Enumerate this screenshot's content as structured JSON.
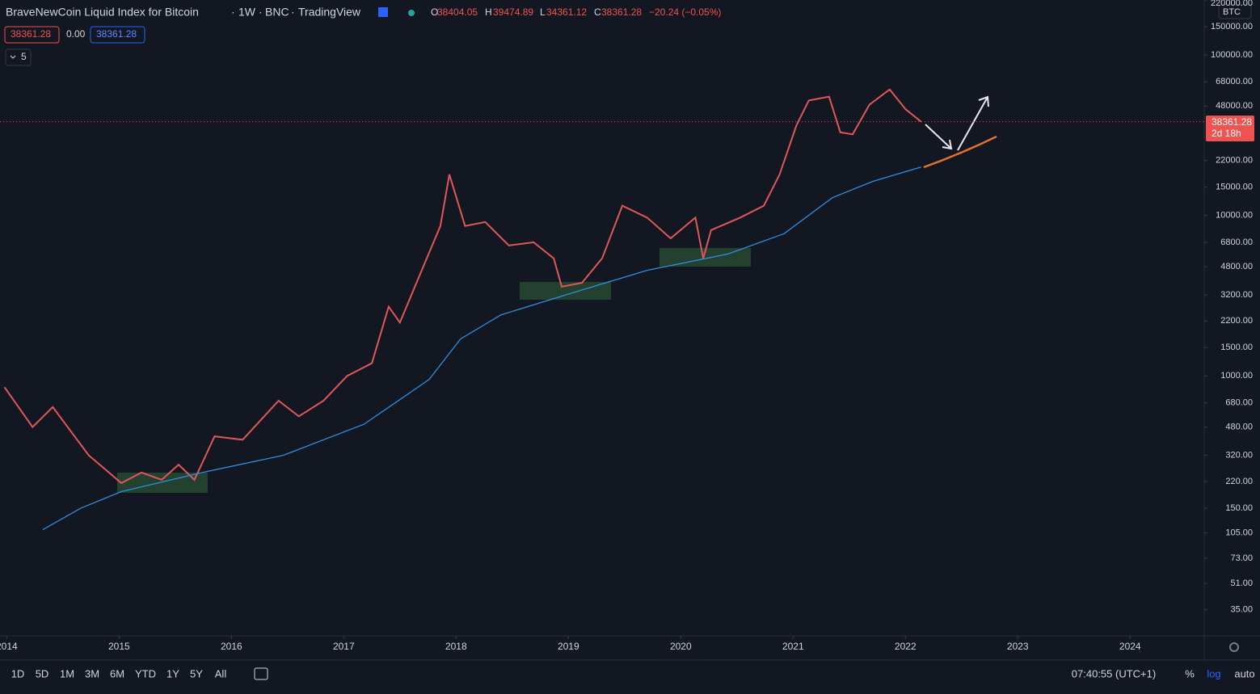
{
  "header": {
    "symbol": "BraveNewCoin Liquid Index for Bitcoin",
    "separator": "·",
    "interval": "1W",
    "exchange": "BNC",
    "source": "TradingView",
    "ohlc": [
      {
        "label": "O",
        "value": "38404.05"
      },
      {
        "label": "H",
        "value": "39474.89"
      },
      {
        "label": "L",
        "value": "34361.12"
      },
      {
        "label": "C",
        "value": "38361.28"
      }
    ],
    "change": "−20.24 (−0.05%)"
  },
  "indicator": {
    "values": [
      "38361.28",
      "0.00",
      "38361.28"
    ],
    "collapsed_count": "5"
  },
  "price_scale": {
    "currency": "BTC",
    "last_price": "38361.28",
    "countdown": "2d 18h"
  },
  "toolbar": {
    "ranges": [
      "1D",
      "5D",
      "1M",
      "3M",
      "6M",
      "YTD",
      "1Y",
      "5Y",
      "All"
    ],
    "time": "07:40:55 (UTC+1)",
    "options": [
      "%",
      "log",
      "auto"
    ]
  },
  "chart_data": {
    "type": "line",
    "log_scale": true,
    "grid": false,
    "xlim": [
      2013.94,
      2024.66
    ],
    "xticks": [
      2014,
      2015,
      2016,
      2017,
      2018,
      2019,
      2020,
      2021,
      2022,
      2023,
      2024
    ],
    "ylim": [
      24,
      220000
    ],
    "yticks": [
      {
        "value": 220000,
        "label": "220000.00"
      },
      {
        "value": 150000,
        "label": "150000.00"
      },
      {
        "value": 100000,
        "label": "100000.00"
      },
      {
        "value": 68000,
        "label": "68000.00"
      },
      {
        "value": 48000,
        "label": "48000.00"
      },
      {
        "value": 22000,
        "label": "22000.00"
      },
      {
        "value": 15000,
        "label": "15000.00"
      },
      {
        "value": 10000,
        "label": "10000.00"
      },
      {
        "value": 6800,
        "label": "6800.00"
      },
      {
        "value": 4800,
        "label": "4800.00"
      },
      {
        "value": 3200,
        "label": "3200.00"
      },
      {
        "value": 2200,
        "label": "2200.00"
      },
      {
        "value": 1500,
        "label": "1500.00"
      },
      {
        "value": 1000,
        "label": "1000.00"
      },
      {
        "value": 680,
        "label": "680.00"
      },
      {
        "value": 480,
        "label": "480.00"
      },
      {
        "value": 320,
        "label": "320.00"
      },
      {
        "value": 220,
        "label": "220.00"
      },
      {
        "value": 150,
        "label": "150.00"
      },
      {
        "value": 105,
        "label": "105.00"
      },
      {
        "value": 73,
        "label": "73.00"
      },
      {
        "value": 51,
        "label": "51.00"
      },
      {
        "value": 35,
        "label": "35.00"
      }
    ],
    "series": [
      {
        "color": "#e0575b",
        "x": [
          2013.98,
          2014.23,
          2014.41,
          2014.73,
          2015.02,
          2015.2,
          2015.38,
          2015.53,
          2015.67,
          2015.85,
          2016.1,
          2016.42,
          2016.6,
          2016.82,
          2017.03,
          2017.25,
          2017.4,
          2017.5,
          2017.68,
          2017.86,
          2017.94,
          2018.08,
          2018.26,
          2018.47,
          2018.69,
          2018.87,
          2018.94,
          2019.12,
          2019.3,
          2019.48,
          2019.7,
          2019.91,
          2020.13,
          2020.2,
          2020.27,
          2020.53,
          2020.74,
          2020.88,
          2021.03,
          2021.14,
          2021.32,
          2021.42,
          2021.53,
          2021.68,
          2021.86,
          2022.0,
          2022.14
        ],
        "values": [
          850,
          480,
          640,
          320,
          215,
          250,
          225,
          280,
          225,
          420,
          400,
          700,
          560,
          700,
          1000,
          1200,
          2700,
          2150,
          4300,
          8600,
          18000,
          8600,
          9100,
          6500,
          6800,
          5400,
          3600,
          3800,
          5400,
          11500,
          9700,
          7200,
          9700,
          5400,
          8100,
          9700,
          11500,
          18000,
          36500,
          52000,
          55000,
          33000,
          32000,
          49000,
          61000,
          46000,
          38361.28
        ]
      },
      {
        "color": "#2f8fe0",
        "x": [
          2014.32,
          2014.66,
          2015.02,
          2015.74,
          2016.46,
          2017.18,
          2017.76,
          2018.04,
          2018.4,
          2018.98,
          2019.7,
          2020.42,
          2020.92,
          2021.35,
          2021.71,
          2022.14
        ],
        "values": [
          110,
          150,
          190,
          250,
          320,
          500,
          950,
          1700,
          2400,
          3200,
          4550,
          5750,
          7700,
          12900,
          16300,
          20000
        ]
      }
    ]
  }
}
